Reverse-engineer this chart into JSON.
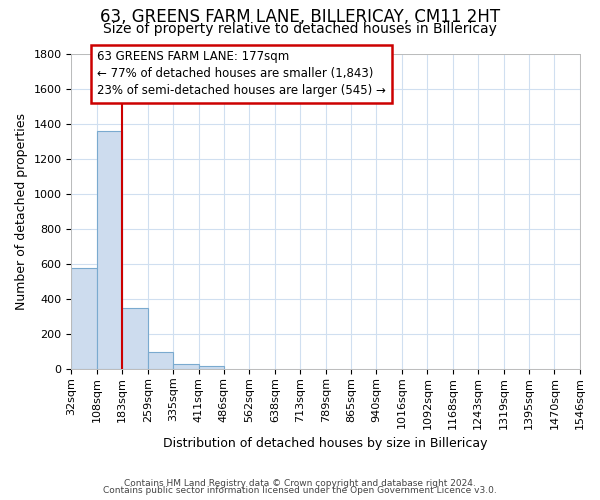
{
  "title": "63, GREENS FARM LANE, BILLERICAY, CM11 2HT",
  "subtitle": "Size of property relative to detached houses in Billericay",
  "xlabel": "Distribution of detached houses by size in Billericay",
  "ylabel": "Number of detached properties",
  "bin_edges": [
    32,
    108,
    183,
    259,
    335,
    411,
    486,
    562,
    638,
    713,
    789,
    865,
    940,
    1016,
    1092,
    1168,
    1243,
    1319,
    1395,
    1470,
    1546
  ],
  "bin_labels": [
    "32sqm",
    "108sqm",
    "183sqm",
    "259sqm",
    "335sqm",
    "411sqm",
    "486sqm",
    "562sqm",
    "638sqm",
    "713sqm",
    "789sqm",
    "865sqm",
    "940sqm",
    "1016sqm",
    "1092sqm",
    "1168sqm",
    "1243sqm",
    "1319sqm",
    "1395sqm",
    "1470sqm",
    "1546sqm"
  ],
  "counts": [
    580,
    1360,
    350,
    95,
    30,
    15,
    0,
    0,
    0,
    0,
    0,
    0,
    0,
    0,
    0,
    0,
    0,
    0,
    0,
    0
  ],
  "bar_color": "#cddcee",
  "bar_edge_color": "#7aaacf",
  "red_line_x": 183,
  "annotation_line1": "63 GREENS FARM LANE: 177sqm",
  "annotation_line2": "← 77% of detached houses are smaller (1,843)",
  "annotation_line3": "23% of semi-detached houses are larger (545) →",
  "annotation_box_color": "#ffffff",
  "annotation_box_edge": "#cc0000",
  "footer_line1": "Contains HM Land Registry data © Crown copyright and database right 2024.",
  "footer_line2": "Contains public sector information licensed under the Open Government Licence v3.0.",
  "background_color": "#ffffff",
  "grid_color": "#d0dff0",
  "ylim": [
    0,
    1800
  ],
  "yticks": [
    0,
    200,
    400,
    600,
    800,
    1000,
    1200,
    1400,
    1600,
    1800
  ],
  "title_fontsize": 12,
  "subtitle_fontsize": 10,
  "axis_label_fontsize": 9,
  "tick_fontsize": 8
}
